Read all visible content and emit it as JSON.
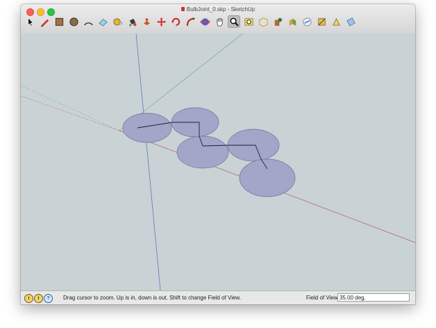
{
  "window": {
    "title": "BulbJoint_0.skp - SketchUp"
  },
  "toolbar": {
    "tools": [
      {
        "name": "select-tool-icon"
      },
      {
        "name": "pencil-line-tool-icon"
      },
      {
        "name": "rectangle-tool-icon"
      },
      {
        "name": "circle-tool-icon"
      },
      {
        "name": "arc-tool-icon"
      },
      {
        "name": "eraser-tool-icon"
      },
      {
        "name": "tape-measure-tool-icon"
      },
      {
        "name": "paint-bucket-tool-icon"
      },
      {
        "name": "push-pull-tool-icon"
      },
      {
        "name": "move-tool-icon"
      },
      {
        "name": "rotate-tool-icon"
      },
      {
        "name": "follow-me-tool-icon"
      },
      {
        "name": "orbit-tool-icon"
      },
      {
        "name": "pan-tool-icon"
      },
      {
        "name": "zoom-tool-icon",
        "active": true
      },
      {
        "name": "zoom-extents-tool-icon"
      },
      {
        "name": "3d-warehouse-icon"
      },
      {
        "name": "components-icon"
      },
      {
        "name": "extension-warehouse-icon"
      },
      {
        "name": "layout-icon"
      },
      {
        "name": "styles-icon"
      },
      {
        "name": "shadows-icon"
      },
      {
        "name": "section-plane-icon"
      },
      {
        "name": "display-sections-icon"
      }
    ]
  },
  "status": {
    "message": "Drag cursor to zoom.  Up is in, down is out. Shift to change Field of View.",
    "field_label": "Field of View",
    "field_value": "35.00 deg.",
    "icons": [
      "geo-location-icon",
      "credits-icon",
      "help-icon"
    ]
  },
  "colors": {
    "viewport_bg": "#c9d3d5",
    "face_fill": "#a3a6c9",
    "axis_red": "#b85a5a",
    "axis_green": "#79a889",
    "axis_blue": "#6a76b0"
  }
}
